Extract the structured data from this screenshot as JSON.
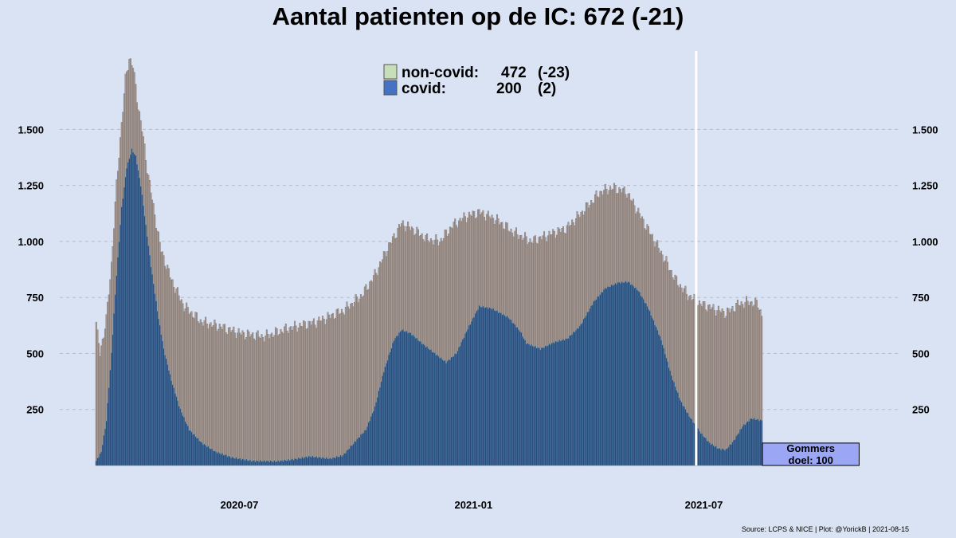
{
  "chart_data": {
    "type": "bar",
    "title": "Aantal patienten op de IC: 672  (-21)",
    "ylim": [
      0,
      1850
    ],
    "yticks": [
      250,
      500,
      750,
      1000,
      1250,
      1500
    ],
    "ytick_labels": [
      "250",
      "500",
      "750",
      "1.000",
      "1.250",
      "1.500"
    ],
    "axis_both_sides": true,
    "grid": true,
    "highlight_gridline": 250,
    "highlight_gridline_color": "#e8b9a6",
    "x_start": "2020-03-10",
    "x_end": "2021-08-15",
    "xticks": [
      "2020-07-01",
      "2021-01-01",
      "2021-07-01"
    ],
    "xtick_labels": [
      "2020-07",
      "2021-01",
      "2021-07"
    ],
    "gap_date": "2021-06-24",
    "stacked": true,
    "series": [
      {
        "name": "covid",
        "color": "#2e4a7d",
        "points": [
          [
            "2020-03-10",
            20
          ],
          [
            "2020-03-14",
            60
          ],
          [
            "2020-03-18",
            200
          ],
          [
            "2020-03-22",
            500
          ],
          [
            "2020-03-26",
            850
          ],
          [
            "2020-03-30",
            1150
          ],
          [
            "2020-04-03",
            1330
          ],
          [
            "2020-04-07",
            1410
          ],
          [
            "2020-04-10",
            1380
          ],
          [
            "2020-04-14",
            1250
          ],
          [
            "2020-04-18",
            1070
          ],
          [
            "2020-04-22",
            890
          ],
          [
            "2020-04-27",
            690
          ],
          [
            "2020-05-02",
            520
          ],
          [
            "2020-05-08",
            380
          ],
          [
            "2020-05-15",
            250
          ],
          [
            "2020-05-22",
            160
          ],
          [
            "2020-06-01",
            100
          ],
          [
            "2020-06-12",
            60
          ],
          [
            "2020-06-25",
            35
          ],
          [
            "2020-07-10",
            20
          ],
          [
            "2020-07-30",
            18
          ],
          [
            "2020-08-10",
            25
          ],
          [
            "2020-08-25",
            40
          ],
          [
            "2020-09-10",
            30
          ],
          [
            "2020-09-20",
            45
          ],
          [
            "2020-09-30",
            110
          ],
          [
            "2020-10-08",
            160
          ],
          [
            "2020-10-15",
            260
          ],
          [
            "2020-10-22",
            420
          ],
          [
            "2020-10-30",
            560
          ],
          [
            "2020-11-05",
            605
          ],
          [
            "2020-11-12",
            590
          ],
          [
            "2020-11-22",
            540
          ],
          [
            "2020-12-01",
            500
          ],
          [
            "2020-12-10",
            460
          ],
          [
            "2020-12-18",
            500
          ],
          [
            "2020-12-27",
            610
          ],
          [
            "2021-01-05",
            710
          ],
          [
            "2021-01-15",
            700
          ],
          [
            "2021-01-28",
            660
          ],
          [
            "2021-02-06",
            600
          ],
          [
            "2021-02-11",
            545
          ],
          [
            "2021-02-22",
            520
          ],
          [
            "2021-03-05",
            550
          ],
          [
            "2021-03-15",
            565
          ],
          [
            "2021-03-25",
            620
          ],
          [
            "2021-04-05",
            730
          ],
          [
            "2021-04-14",
            790
          ],
          [
            "2021-04-24",
            815
          ],
          [
            "2021-05-02",
            820
          ],
          [
            "2021-05-10",
            780
          ],
          [
            "2021-05-18",
            700
          ],
          [
            "2021-05-28",
            560
          ],
          [
            "2021-06-05",
            400
          ],
          [
            "2021-06-12",
            290
          ],
          [
            "2021-06-19",
            220
          ],
          [
            "2021-06-28",
            145
          ],
          [
            "2021-07-05",
            100
          ],
          [
            "2021-07-12",
            75
          ],
          [
            "2021-07-18",
            70
          ],
          [
            "2021-07-24",
            110
          ],
          [
            "2021-07-31",
            175
          ],
          [
            "2021-08-07",
            210
          ],
          [
            "2021-08-15",
            200
          ]
        ]
      },
      {
        "name": "non-covid",
        "color": "#a89a94",
        "totals": [
          [
            "2020-03-10",
            640
          ],
          [
            "2020-03-11",
            580
          ],
          [
            "2020-03-13",
            500
          ],
          [
            "2020-03-15",
            560
          ],
          [
            "2020-03-18",
            650
          ],
          [
            "2020-03-22",
            900
          ],
          [
            "2020-03-26",
            1250
          ],
          [
            "2020-03-30",
            1530
          ],
          [
            "2020-04-02",
            1720
          ],
          [
            "2020-04-05",
            1820
          ],
          [
            "2020-04-08",
            1780
          ],
          [
            "2020-04-11",
            1640
          ],
          [
            "2020-04-15",
            1500
          ],
          [
            "2020-04-19",
            1330
          ],
          [
            "2020-04-24",
            1150
          ],
          [
            "2020-04-30",
            960
          ],
          [
            "2020-05-08",
            830
          ],
          [
            "2020-05-18",
            710
          ],
          [
            "2020-06-01",
            640
          ],
          [
            "2020-06-15",
            620
          ],
          [
            "2020-07-01",
            590
          ],
          [
            "2020-07-20",
            575
          ],
          [
            "2020-08-10",
            615
          ],
          [
            "2020-08-30",
            640
          ],
          [
            "2020-09-20",
            690
          ],
          [
            "2020-10-05",
            760
          ],
          [
            "2020-10-15",
            850
          ],
          [
            "2020-10-25",
            970
          ],
          [
            "2020-11-05",
            1080
          ],
          [
            "2020-11-15",
            1050
          ],
          [
            "2020-11-25",
            1010
          ],
          [
            "2020-12-05",
            1000
          ],
          [
            "2020-12-15",
            1070
          ],
          [
            "2020-12-25",
            1110
          ],
          [
            "2021-01-05",
            1130
          ],
          [
            "2021-01-18",
            1100
          ],
          [
            "2021-02-01",
            1040
          ],
          [
            "2021-02-15",
            1000
          ],
          [
            "2021-03-01",
            1030
          ],
          [
            "2021-03-15",
            1060
          ],
          [
            "2021-03-30",
            1150
          ],
          [
            "2021-04-10",
            1220
          ],
          [
            "2021-04-20",
            1240
          ],
          [
            "2021-05-01",
            1220
          ],
          [
            "2021-05-10",
            1130
          ],
          [
            "2021-05-20",
            1030
          ],
          [
            "2021-05-30",
            930
          ],
          [
            "2021-06-08",
            830
          ],
          [
            "2021-06-18",
            760
          ],
          [
            "2021-06-28",
            720
          ],
          [
            "2021-07-08",
            700
          ],
          [
            "2021-07-18",
            680
          ],
          [
            "2021-07-28",
            720
          ],
          [
            "2021-08-05",
            730
          ],
          [
            "2021-08-12",
            720
          ],
          [
            "2021-08-15",
            672
          ]
        ]
      }
    ],
    "legend": [
      {
        "name": "non-covid:",
        "value": "472",
        "change": "(-23)",
        "color": "#c7dfb9"
      },
      {
        "name": "covid:",
        "value": "200",
        "change": "(2)",
        "color": "#4472c4"
      }
    ],
    "legend_position": "top-center",
    "annotation": {
      "text_line1": "Gommers",
      "text_line2": "doel: 100",
      "value": 100,
      "x_from": "2021-08-16",
      "x_to": "2021-10-31",
      "fill": "#9ba7f5"
    },
    "source": "Source: LCPS & NICE | Plot: @YorickB |  2021-08-15"
  }
}
